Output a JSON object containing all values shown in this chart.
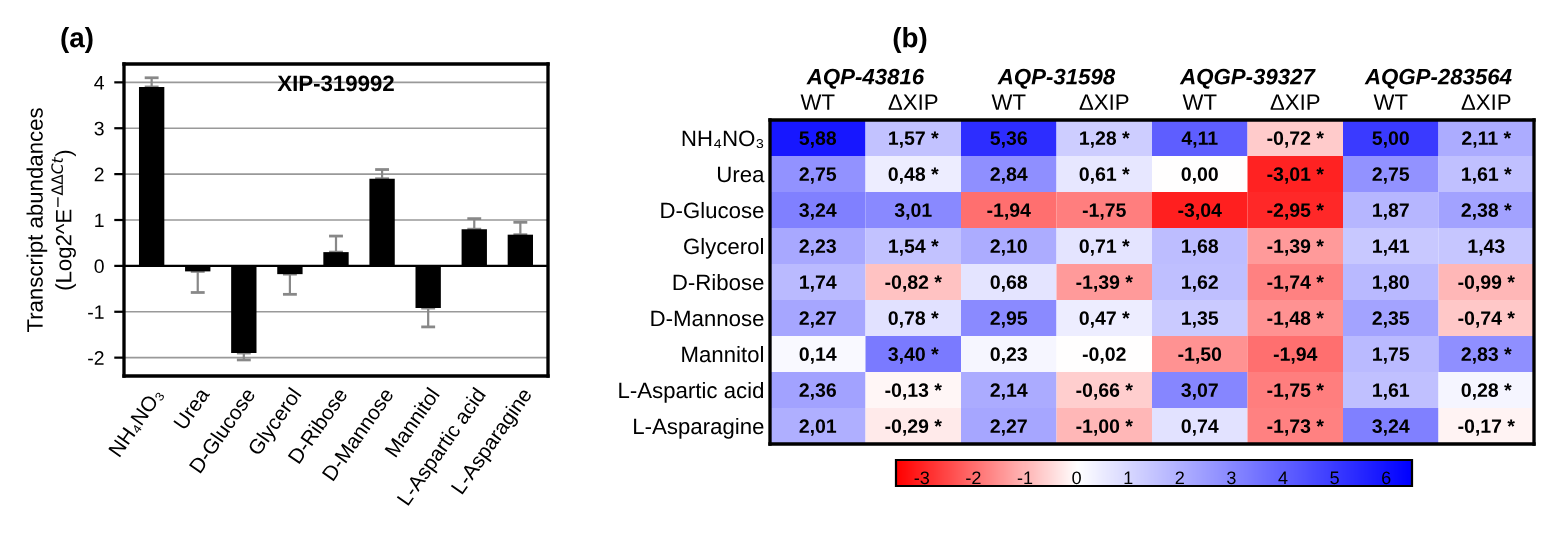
{
  "chart_data": [
    {
      "type": "bar",
      "title": "XIP-319992",
      "ylabel": "Transcript abundances\n(Log2^E$^{−ΔΔCt}$)",
      "annotations": [
        "(a)"
      ],
      "categories": [
        "NH₄NO₃",
        "Urea",
        "D-Glucose",
        "Glycerol",
        "D-Ribose",
        "D-Mannose",
        "Mannitol",
        "L-Aspartic acid",
        "L-Asparagine"
      ],
      "values": [
        3.9,
        -0.12,
        -1.9,
        -0.18,
        0.3,
        1.9,
        -0.92,
        0.8,
        0.68
      ],
      "errors": [
        [
          3.9,
          4.1
        ],
        [
          -0.58,
          -0.12
        ],
        [
          -2.05,
          -1.9
        ],
        [
          -0.62,
          -0.18
        ],
        [
          0.3,
          0.65
        ],
        [
          1.9,
          2.1
        ],
        [
          -1.33,
          -0.92
        ],
        [
          0.8,
          1.03
        ],
        [
          0.68,
          0.95
        ]
      ],
      "color": "#000000",
      "ylim": [
        -2.4,
        4.4
      ],
      "yticks": [
        -2,
        -1,
        0,
        1,
        2,
        3,
        4
      ],
      "grid": "y"
    },
    {
      "type": "heatmap",
      "annotations": [
        "(b)",
        "AQP-43816",
        "AQP-31598",
        "AQGP-39327",
        "AQGP-283564"
      ],
      "categories": [
        "WT",
        "ΔXIP",
        "WT",
        "ΔXIP",
        "WT",
        "ΔXIP",
        "WT",
        "ΔXIP"
      ],
      "y_categories": [
        "NH₄NO₃",
        "Urea",
        "D-Glucose",
        "Glycerol",
        "D-Ribose",
        "D-Mannose",
        "Mannitol",
        "L-Aspartic acid",
        "L-Asparagine"
      ],
      "cells": [
        [
          5.88,
          1.57,
          5.36,
          1.28,
          4.11,
          -0.72,
          5.0,
          2.11
        ],
        [
          2.75,
          0.48,
          2.84,
          0.61,
          0.0,
          -3.01,
          2.75,
          1.61
        ],
        [
          3.24,
          3.01,
          -1.94,
          -1.75,
          -3.04,
          -2.95,
          1.87,
          2.38
        ],
        [
          2.23,
          1.54,
          2.1,
          0.71,
          1.68,
          -1.39,
          1.41,
          1.43
        ],
        [
          1.74,
          -0.82,
          0.68,
          -1.39,
          1.62,
          -1.74,
          1.8,
          -0.99
        ],
        [
          2.27,
          0.78,
          2.95,
          0.47,
          1.35,
          -1.48,
          2.35,
          -0.74
        ],
        [
          0.14,
          3.4,
          0.23,
          -0.02,
          -1.5,
          -1.94,
          1.75,
          2.83
        ],
        [
          2.36,
          -0.13,
          2.14,
          -0.66,
          3.07,
          -1.75,
          1.61,
          0.28
        ],
        [
          2.01,
          -0.29,
          2.27,
          -1.0,
          0.74,
          -1.73,
          3.24,
          -0.17
        ]
      ],
      "cell_labels": [
        [
          "5,88",
          "1,57 *",
          "5,36",
          "1,28 *",
          "4,11",
          "-0,72 *",
          "5,00",
          "2,11 *"
        ],
        [
          "2,75",
          "0,48 *",
          "2,84",
          "0,61 *",
          "0,00",
          "-3,01 *",
          "2,75",
          "1,61 *"
        ],
        [
          "3,24",
          "3,01",
          "-1,94",
          "-1,75",
          "-3,04",
          "-2,95 *",
          "1,87",
          "2,38 *"
        ],
        [
          "2,23",
          "1,54 *",
          "2,10",
          "0,71 *",
          "1,68",
          "-1,39 *",
          "1,41",
          "1,43"
        ],
        [
          "1,74",
          "-0,82 *",
          "0,68",
          "-1,39 *",
          "1,62",
          "-1,74 *",
          "1,80",
          "-0,99 *"
        ],
        [
          "2,27",
          "0,78 *",
          "2,95",
          "0,47 *",
          "1,35",
          "-1,48 *",
          "2,35",
          "-0,74 *"
        ],
        [
          "0,14",
          "3,40 *",
          "0,23",
          "-0,02",
          "-1,50",
          "-1,94",
          "1,75",
          "2,83 *"
        ],
        [
          "2,36",
          "-0,13 *",
          "2,14",
          "-0,66 *",
          "3,07",
          "-1,75 *",
          "1,61",
          "0,28 *"
        ],
        [
          "2,01",
          "-0,29 *",
          "2,27",
          "-1,00 *",
          "0,74",
          "-1,73 *",
          "3,24",
          "-0,17 *"
        ]
      ],
      "clim": [
        -3.5,
        6.5
      ],
      "cticks": [
        -3,
        -2,
        -1,
        0,
        1,
        2,
        3,
        4,
        5,
        6
      ]
    }
  ]
}
